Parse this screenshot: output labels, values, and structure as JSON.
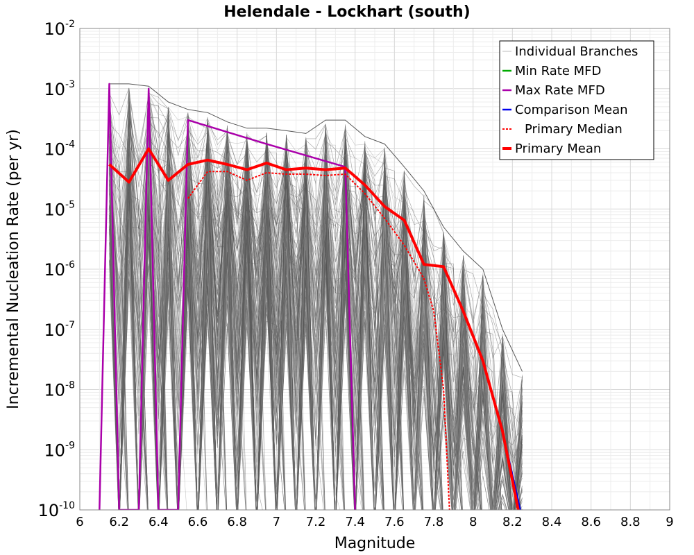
{
  "chart_data": {
    "type": "line",
    "title": "Helendale - Lockhart (south)",
    "xlabel": "Magnitude",
    "ylabel": "Incremental Nucleation Rate (per yr)",
    "xlim": [
      6,
      9
    ],
    "ylim": [
      1e-10,
      0.01
    ],
    "yscale": "log",
    "grid": true,
    "legend_position": "top-right",
    "x_ticks": [
      "6",
      "6.2",
      "6.4",
      "6.6",
      "6.8",
      "7",
      "7.2",
      "7.4",
      "7.6",
      "7.8",
      "8",
      "8.2",
      "8.4",
      "8.6",
      "8.8",
      "9"
    ],
    "y_ticks": [
      {
        "base": "10",
        "exp": "-2"
      },
      {
        "base": "10",
        "exp": "-3"
      },
      {
        "base": "10",
        "exp": "-4"
      },
      {
        "base": "10",
        "exp": "-5"
      },
      {
        "base": "10",
        "exp": "-6"
      },
      {
        "base": "10",
        "exp": "-7"
      },
      {
        "base": "10",
        "exp": "-8"
      },
      {
        "base": "10",
        "exp": "-9"
      },
      {
        "base": "10",
        "exp": "-10"
      }
    ],
    "series": [
      {
        "name": "Individual Branches",
        "color": "#555555",
        "style": "thin-band",
        "upper_envelope": [
          [
            6.15,
            0.0012
          ],
          [
            6.25,
            0.0012
          ],
          [
            6.35,
            0.0011
          ],
          [
            6.45,
            0.0006
          ],
          [
            6.55,
            0.00045
          ],
          [
            6.65,
            0.0004
          ],
          [
            6.75,
            0.00028
          ],
          [
            6.85,
            0.00022
          ],
          [
            6.95,
            0.00022
          ],
          [
            7.05,
            0.0002
          ],
          [
            7.15,
            0.00018
          ],
          [
            7.25,
            0.0003
          ],
          [
            7.35,
            0.0003
          ],
          [
            7.45,
            0.00016
          ],
          [
            7.55,
            0.00012
          ],
          [
            7.65,
            5e-05
          ],
          [
            7.75,
            2e-05
          ],
          [
            7.85,
            5e-06
          ],
          [
            7.95,
            2e-06
          ],
          [
            8.05,
            1e-06
          ],
          [
            8.15,
            1e-07
          ],
          [
            8.25,
            2e-08
          ]
        ]
      },
      {
        "name": "Min Rate MFD",
        "color": "#00aa00",
        "style": "solid",
        "points": []
      },
      {
        "name": "Max Rate MFD",
        "color": "#aa00aa",
        "style": "solid",
        "points": [
          [
            6.1,
            1e-10
          ],
          [
            6.15,
            0.0012
          ],
          [
            6.2,
            1e-10
          ],
          [
            6.3,
            1e-10
          ],
          [
            6.35,
            0.001
          ],
          [
            6.4,
            1e-10
          ],
          [
            6.5,
            1e-10
          ],
          [
            6.55,
            0.0003
          ],
          [
            6.95,
            0.00012
          ],
          [
            7.35,
            5e-05
          ],
          [
            7.4,
            1e-10
          ]
        ]
      },
      {
        "name": "Comparison Mean",
        "color": "#0000ee",
        "style": "solid",
        "points": [
          [
            8.15,
            2e-09
          ],
          [
            8.24,
            1e-10
          ]
        ]
      },
      {
        "name": "Primary Median",
        "color": "#ff0000",
        "style": "dotted",
        "points": [
          [
            6.55,
            1.5e-05
          ],
          [
            6.65,
            4.2e-05
          ],
          [
            6.75,
            4.2e-05
          ],
          [
            6.85,
            3e-05
          ],
          [
            6.95,
            4e-05
          ],
          [
            7.05,
            3.8e-05
          ],
          [
            7.15,
            3.8e-05
          ],
          [
            7.25,
            3.6e-05
          ],
          [
            7.35,
            3.8e-05
          ],
          [
            7.45,
            1.8e-05
          ],
          [
            7.55,
            7e-06
          ],
          [
            7.65,
            2.5e-06
          ],
          [
            7.75,
            7e-07
          ],
          [
            7.8,
            2e-07
          ],
          [
            7.85,
            1e-08
          ],
          [
            7.88,
            1e-10
          ]
        ]
      },
      {
        "name": "Primary Mean",
        "color": "#ff0000",
        "style": "thick",
        "points": [
          [
            6.15,
            5.5e-05
          ],
          [
            6.25,
            2.8e-05
          ],
          [
            6.35,
            0.0001
          ],
          [
            6.45,
            3e-05
          ],
          [
            6.55,
            5.5e-05
          ],
          [
            6.65,
            6.5e-05
          ],
          [
            6.75,
            5.5e-05
          ],
          [
            6.85,
            4.5e-05
          ],
          [
            6.95,
            5.8e-05
          ],
          [
            7.05,
            4.5e-05
          ],
          [
            7.15,
            4.8e-05
          ],
          [
            7.25,
            4.5e-05
          ],
          [
            7.35,
            4.8e-05
          ],
          [
            7.45,
            2.5e-05
          ],
          [
            7.55,
            1.1e-05
          ],
          [
            7.65,
            6.5e-06
          ],
          [
            7.75,
            1.2e-06
          ],
          [
            7.85,
            1.1e-06
          ],
          [
            7.95,
            2e-07
          ],
          [
            8.05,
            3e-08
          ],
          [
            8.15,
            2e-09
          ],
          [
            8.23,
            1e-10
          ]
        ]
      }
    ]
  }
}
